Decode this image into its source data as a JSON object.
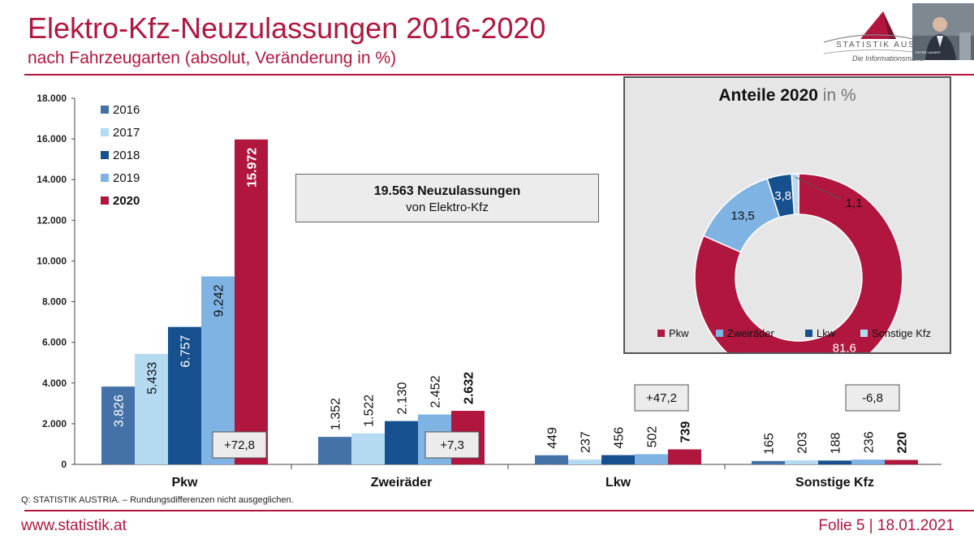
{
  "header": {
    "title": "Elektro-Kfz-Neuzulassungen 2016-2020",
    "subtitle": "nach Fahrzeugarten (absolut, Veränderung in %)"
  },
  "logo": {
    "text": "STATISTIK AUS",
    "subtext": "Die Informationsmana"
  },
  "webcam": {
    "caption": "PETER LAUNER"
  },
  "info_box": {
    "line1": "19.563 Neuzulassungen",
    "line2": "von Elektro-Kfz"
  },
  "footer": {
    "source": "Q: STATISTIK AUSTRIA. – Rundungsdifferenzen nicht ausgeglichen.",
    "url": "www.statistik.at",
    "slide": "Folie 5 | 18.01.2021"
  },
  "chart_data": [
    {
      "type": "bar",
      "categories": [
        "Pkw",
        "Zweiräder",
        "Lkw",
        "Sonstige Kfz"
      ],
      "series": [
        {
          "name": "2016",
          "color": "#4472a8",
          "values": [
            3826,
            1352,
            449,
            165
          ],
          "labels": [
            "3.826",
            "1.352",
            "449",
            "165"
          ]
        },
        {
          "name": "2017",
          "color": "#b4daf2",
          "values": [
            5433,
            1522,
            237,
            203
          ],
          "labels": [
            "5.433",
            "1.522",
            "237",
            "203"
          ]
        },
        {
          "name": "2018",
          "color": "#16508f",
          "values": [
            6757,
            2130,
            456,
            188
          ],
          "labels": [
            "6.757",
            "2.130",
            "456",
            "188"
          ]
        },
        {
          "name": "2019",
          "color": "#7eb3e3",
          "values": [
            9242,
            2452,
            502,
            236
          ],
          "labels": [
            "9.242",
            "2.452",
            "502",
            "236"
          ]
        },
        {
          "name": "2020",
          "color": "#b0163e",
          "values": [
            15972,
            2632,
            739,
            220
          ],
          "labels": [
            "15.972",
            "2.632",
            "739",
            "220"
          ]
        }
      ],
      "change_labels": [
        "+72,8",
        "+7,3",
        "+47,2",
        "-6,8"
      ],
      "yticks": [
        "0",
        "2.000",
        "4.000",
        "6.000",
        "8.000",
        "10.000",
        "12.000",
        "14.000",
        "16.000",
        "18.000"
      ],
      "ylim": [
        0,
        18000
      ],
      "legend_position": "top-left"
    },
    {
      "type": "pie",
      "title": "Anteile 2020",
      "title_unit": "in %",
      "labels": [
        "Pkw",
        "Zweiräder",
        "Lkw",
        "Sonstige Kfz"
      ],
      "values": [
        81.6,
        13.5,
        3.8,
        1.1
      ],
      "value_labels": [
        "81,6",
        "13,5",
        "3,8",
        "1,1"
      ],
      "colors": [
        "#b0163e",
        "#7eb3e3",
        "#16508f",
        "#b4daf2"
      ],
      "legend_position": "bottom"
    }
  ]
}
